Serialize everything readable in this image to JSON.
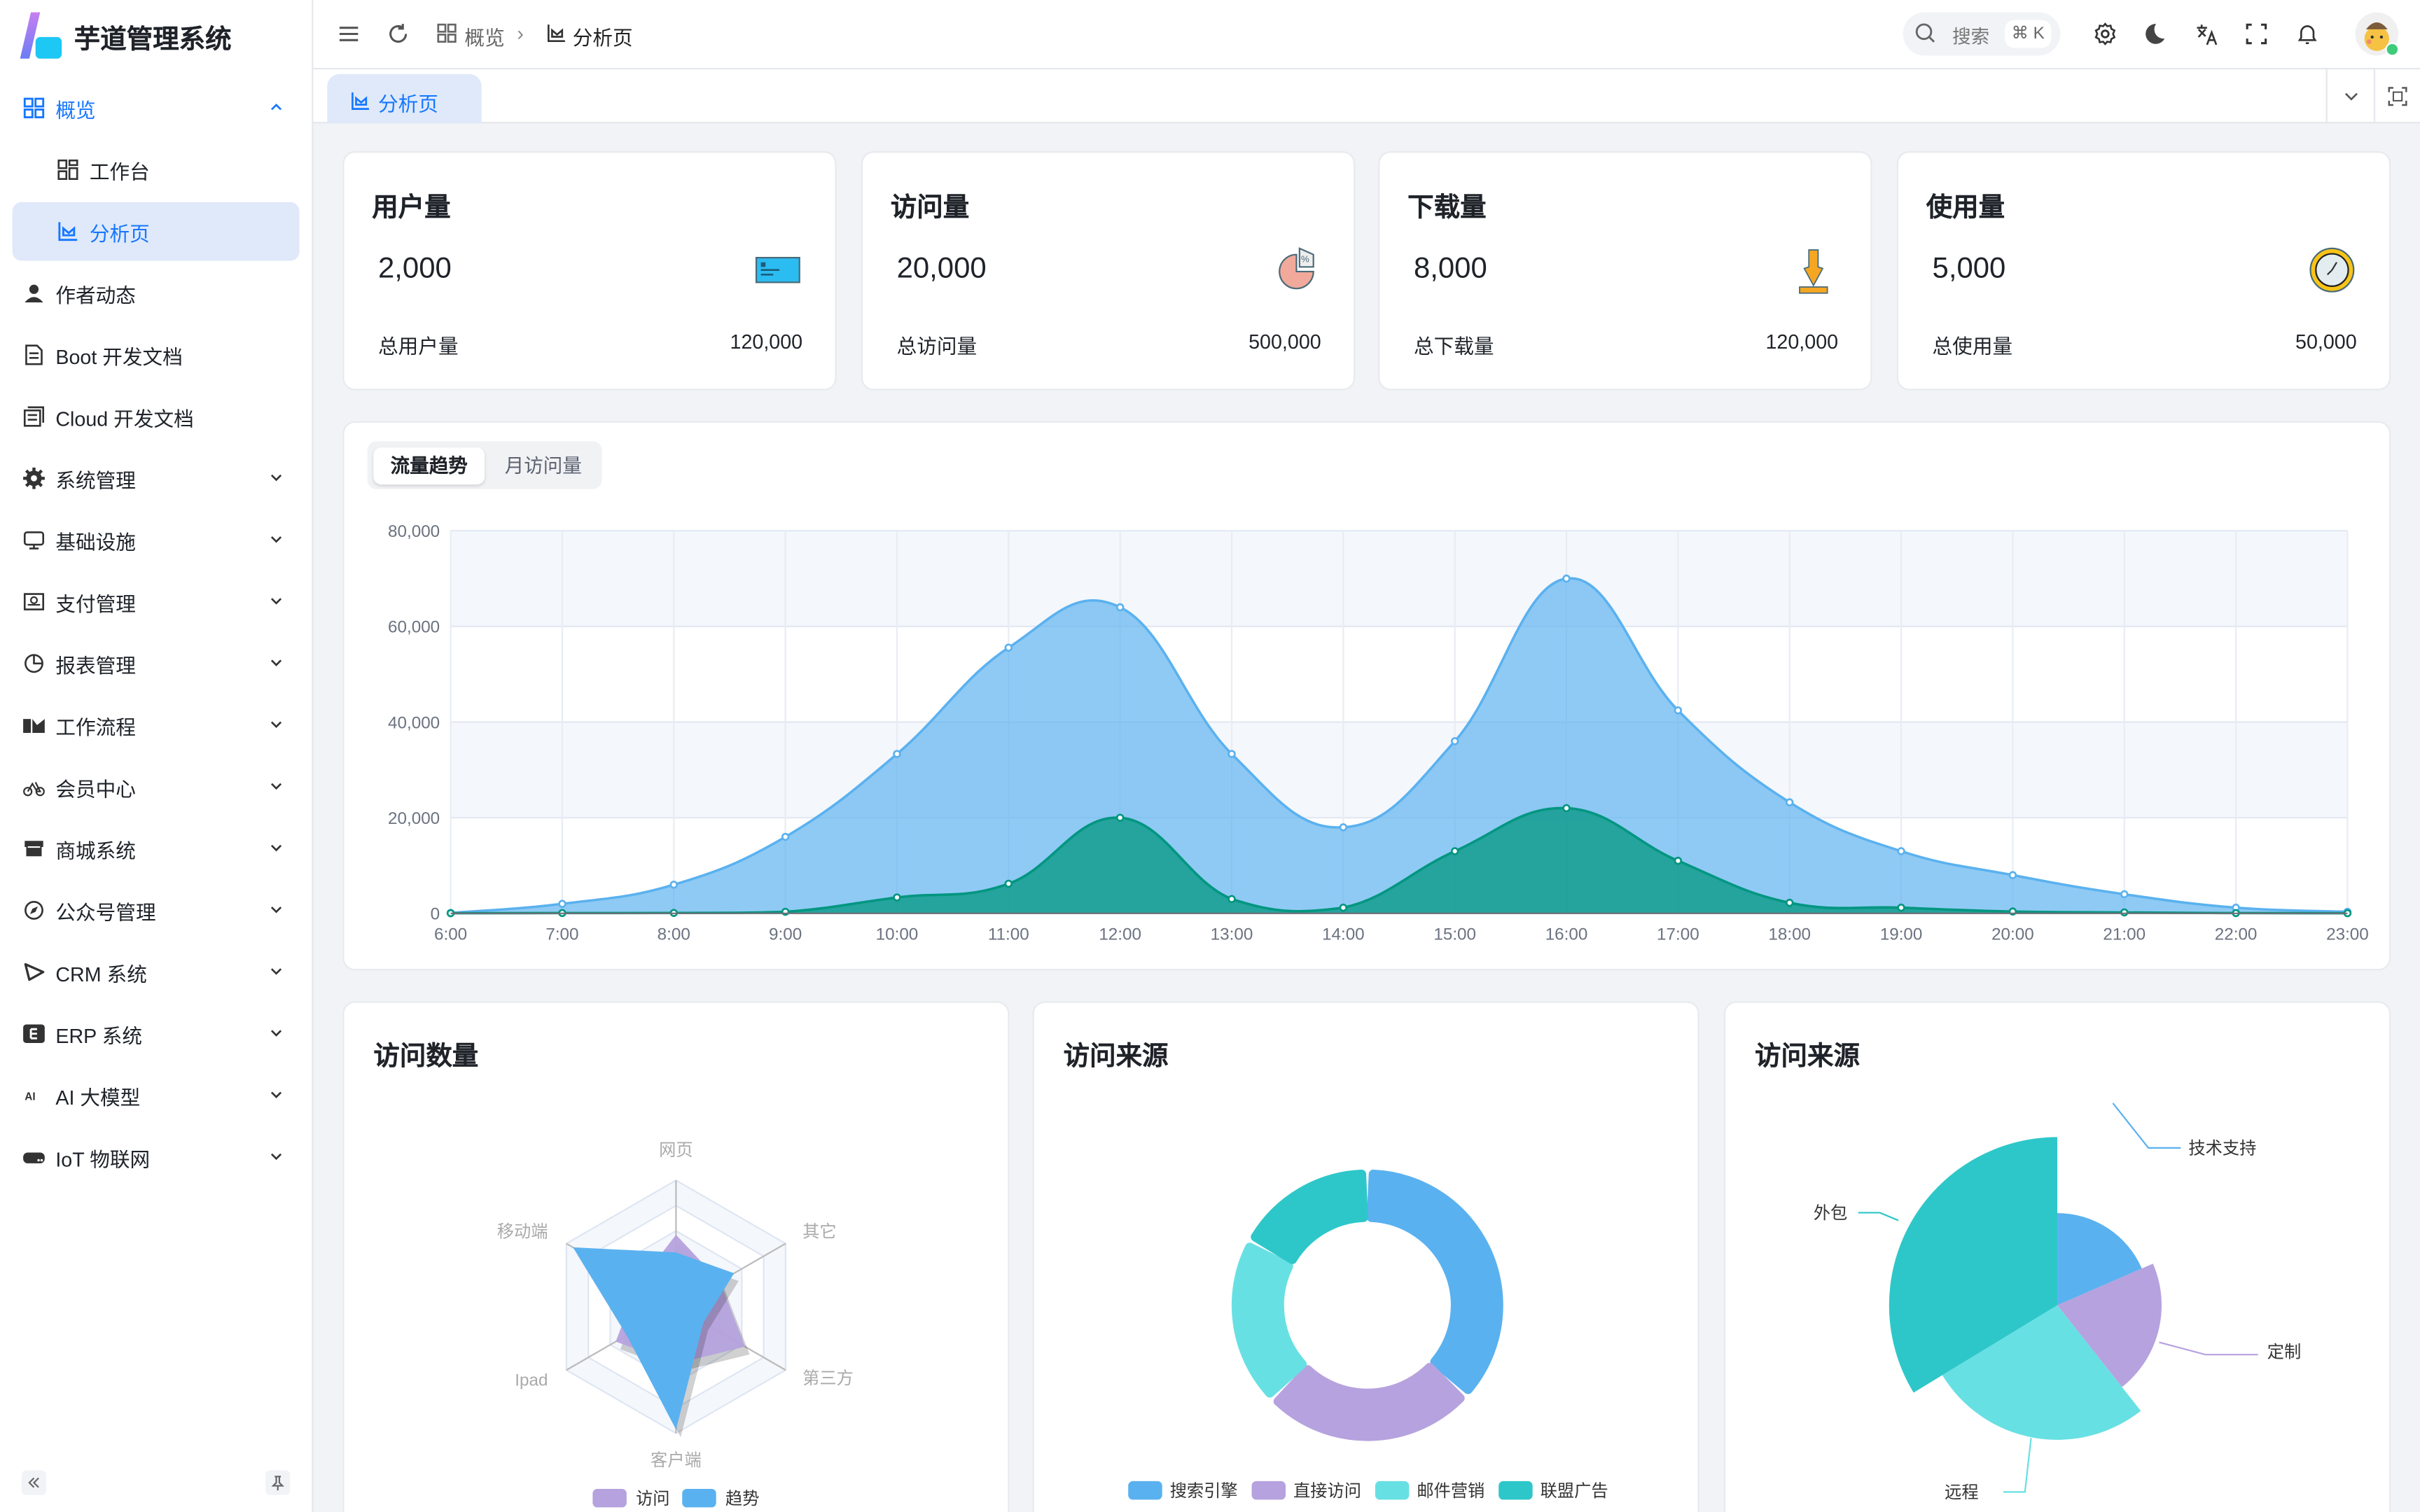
{
  "app": {
    "title": "芋道管理系统"
  },
  "header": {
    "breadcrumb": [
      "概览",
      "分析页"
    ],
    "search_placeholder": "搜索",
    "search_shortcut": "⌘ K",
    "icons": [
      "menu-icon",
      "refresh-icon",
      "settings-icon",
      "dark-mode-icon",
      "translate-icon",
      "fullscreen-icon",
      "notification-bell-icon",
      "avatar"
    ]
  },
  "tabs": [
    {
      "label": "分析页",
      "active": true
    }
  ],
  "sidebar": {
    "items": [
      {
        "label": "概览",
        "icon": "dashboard-icon",
        "expanded": true
      },
      {
        "label": "工作台",
        "icon": "workspace-icon",
        "child": true
      },
      {
        "label": "分析页",
        "icon": "analytics-icon",
        "child": true,
        "active": true
      },
      {
        "label": "作者动态",
        "icon": "user-icon"
      },
      {
        "label": "Boot 开发文档",
        "icon": "document-icon"
      },
      {
        "label": "Cloud 开发文档",
        "icon": "documents-icon"
      },
      {
        "label": "系统管理",
        "icon": "gear-icon",
        "has_children": true
      },
      {
        "label": "基础设施",
        "icon": "monitor-icon",
        "has_children": true
      },
      {
        "label": "支付管理",
        "icon": "payment-icon",
        "has_children": true
      },
      {
        "label": "报表管理",
        "icon": "pie-chart-icon",
        "has_children": true
      },
      {
        "label": "工作流程",
        "icon": "workflow-icon",
        "has_children": true
      },
      {
        "label": "会员中心",
        "icon": "bicycle-icon",
        "has_children": true
      },
      {
        "label": "商城系统",
        "icon": "shop-icon",
        "has_children": true
      },
      {
        "label": "公众号管理",
        "icon": "compass-icon",
        "has_children": true
      },
      {
        "label": "CRM 系统",
        "icon": "crm-icon",
        "has_children": true
      },
      {
        "label": "ERP 系统",
        "icon": "erp-icon",
        "has_children": true
      },
      {
        "label": "AI 大模型",
        "icon": "ai-icon",
        "has_children": true
      },
      {
        "label": "IoT 物联网",
        "icon": "iot-icon",
        "has_children": true
      }
    ]
  },
  "stats": [
    {
      "title": "用户量",
      "value": "2,000",
      "footer_label": "总用户量",
      "footer_value": "120,000",
      "icon": "credit-card-icon"
    },
    {
      "title": "访问量",
      "value": "20,000",
      "footer_label": "总访问量",
      "footer_value": "500,000",
      "icon": "pie-percent-icon"
    },
    {
      "title": "下载量",
      "value": "8,000",
      "footer_label": "总下载量",
      "footer_value": "120,000",
      "icon": "download-icon"
    },
    {
      "title": "使用量",
      "value": "5,000",
      "footer_label": "总使用量",
      "footer_value": "50,000",
      "icon": "clock-icon"
    }
  ],
  "trend": {
    "tabs": [
      "流量趋势",
      "月访问量"
    ],
    "active_tab": 0
  },
  "panels": {
    "radar_title": "访问数量",
    "donut_title": "访问来源",
    "rose_title": "访问来源"
  },
  "colors": {
    "accent": "#1677ff",
    "blue": "#5ab1ef",
    "green": "#019680",
    "purple": "#b6a2de",
    "cyan": "#67e0e3",
    "teal": "#2ec7c9"
  },
  "chart_data": [
    {
      "type": "area",
      "x": [
        "6:00",
        "7:00",
        "8:00",
        "9:00",
        "10:00",
        "11:00",
        "12:00",
        "13:00",
        "14:00",
        "15:00",
        "16:00",
        "17:00",
        "18:00",
        "19:00",
        "20:00",
        "21:00",
        "22:00",
        "23:00"
      ],
      "series": [
        {
          "values": [
            111,
            2000,
            6000,
            16000,
            33333,
            55555,
            64000,
            33333,
            18000,
            36000,
            70000,
            42444,
            23222,
            13000,
            8000,
            4000,
            1200,
            333
          ],
          "color": "#5ab1ef"
        },
        {
          "values": [
            33,
            66,
            88,
            333,
            3333,
            6200,
            20000,
            3000,
            1200,
            13000,
            22000,
            11000,
            2221,
            1201,
            390,
            198,
            60,
            30
          ],
          "color": "#019680"
        }
      ],
      "ylim": [
        0,
        80000
      ],
      "yticks": [
        "0",
        "20,000",
        "40,000",
        "60,000",
        "80,000"
      ],
      "grid": true
    },
    {
      "type": "radar",
      "indicators": [
        "网页",
        "移动端",
        "Ipad",
        "客户端",
        "第三方",
        "其它"
      ],
      "max": 100,
      "series": [
        {
          "name": "访问",
          "values": [
            57,
            35,
            55,
            45,
            63,
            40
          ],
          "color": "#b6a2de"
        },
        {
          "name": "趋势",
          "values": [
            43,
            94,
            45,
            97,
            25,
            53
          ],
          "color": "#5ab1ef"
        }
      ],
      "legend": "bottom"
    },
    {
      "type": "pie",
      "donut": true,
      "slices": [
        {
          "name": "搜索引擎",
          "value": 1048,
          "color": "#5ab1ef"
        },
        {
          "name": "直接访问",
          "value": 735,
          "color": "#b6a2de"
        },
        {
          "name": "邮件营销",
          "value": 580,
          "color": "#67e0e3"
        },
        {
          "name": "联盟广告",
          "value": 484,
          "color": "#2ec7c9"
        }
      ],
      "legend": "bottom"
    },
    {
      "type": "pie",
      "rose": true,
      "slices": [
        {
          "name": "技术支持",
          "value": 274,
          "color": "#5ab1ef"
        },
        {
          "name": "定制",
          "value": 310,
          "color": "#b6a2de"
        },
        {
          "name": "远程",
          "value": 400,
          "color": "#67e0e3"
        },
        {
          "name": "外包",
          "value": 500,
          "color": "#2ec7c9"
        }
      ]
    }
  ]
}
